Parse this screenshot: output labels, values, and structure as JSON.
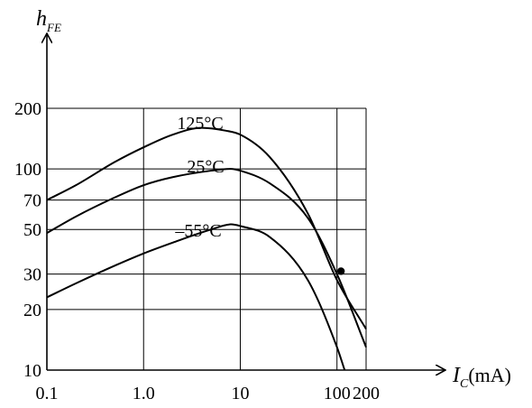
{
  "chart_data": {
    "type": "line",
    "xscale": "log",
    "yscale": "log",
    "xlim": [
      0.1,
      200
    ],
    "ylim": [
      10,
      200
    ],
    "x_ticks": [
      {
        "value": 0.1,
        "label": "0.1"
      },
      {
        "value": 1,
        "label": "1.0"
      },
      {
        "value": 10,
        "label": "10"
      },
      {
        "value": 100,
        "label": "100"
      },
      {
        "value": 200,
        "label": "200"
      }
    ],
    "y_ticks": [
      {
        "value": 10,
        "label": "10"
      },
      {
        "value": 20,
        "label": "20"
      },
      {
        "value": 30,
        "label": "30"
      },
      {
        "value": 50,
        "label": "50"
      },
      {
        "value": 70,
        "label": "70"
      },
      {
        "value": 100,
        "label": "100"
      },
      {
        "value": 200,
        "label": "200"
      }
    ],
    "x_grid": [
      0.1,
      1,
      10,
      100,
      200
    ],
    "y_grid": [
      10,
      20,
      30,
      50,
      70,
      100,
      200
    ],
    "ylabel": {
      "main": "h",
      "sub": "FE"
    },
    "xlabel": {
      "main": "I",
      "sub": "C",
      "unit": "(mA)"
    },
    "series": [
      {
        "name": "125°C",
        "x": [
          0.1,
          0.2,
          0.5,
          1,
          2,
          4,
          7,
          10,
          20,
          50,
          100,
          200
        ],
        "y": [
          70,
          83,
          108,
          128,
          148,
          160,
          155,
          148,
          115,
          60,
          28,
          16
        ]
      },
      {
        "name": "25°C",
        "x": [
          0.1,
          0.2,
          0.5,
          1,
          2,
          5,
          8,
          10,
          20,
          50,
          100,
          200
        ],
        "y": [
          48,
          58,
          72,
          83,
          91,
          98,
          100,
          98,
          85,
          57,
          30,
          13
        ]
      },
      {
        "name": "–55°C",
        "x": [
          0.1,
          0.2,
          0.5,
          1,
          2,
          5,
          8,
          10,
          20,
          50,
          100,
          120
        ],
        "y": [
          23,
          27,
          33,
          38,
          43,
          50,
          53,
          52,
          46,
          28,
          13,
          10
        ]
      }
    ],
    "marker": {
      "x": 110,
      "y": 31
    }
  }
}
